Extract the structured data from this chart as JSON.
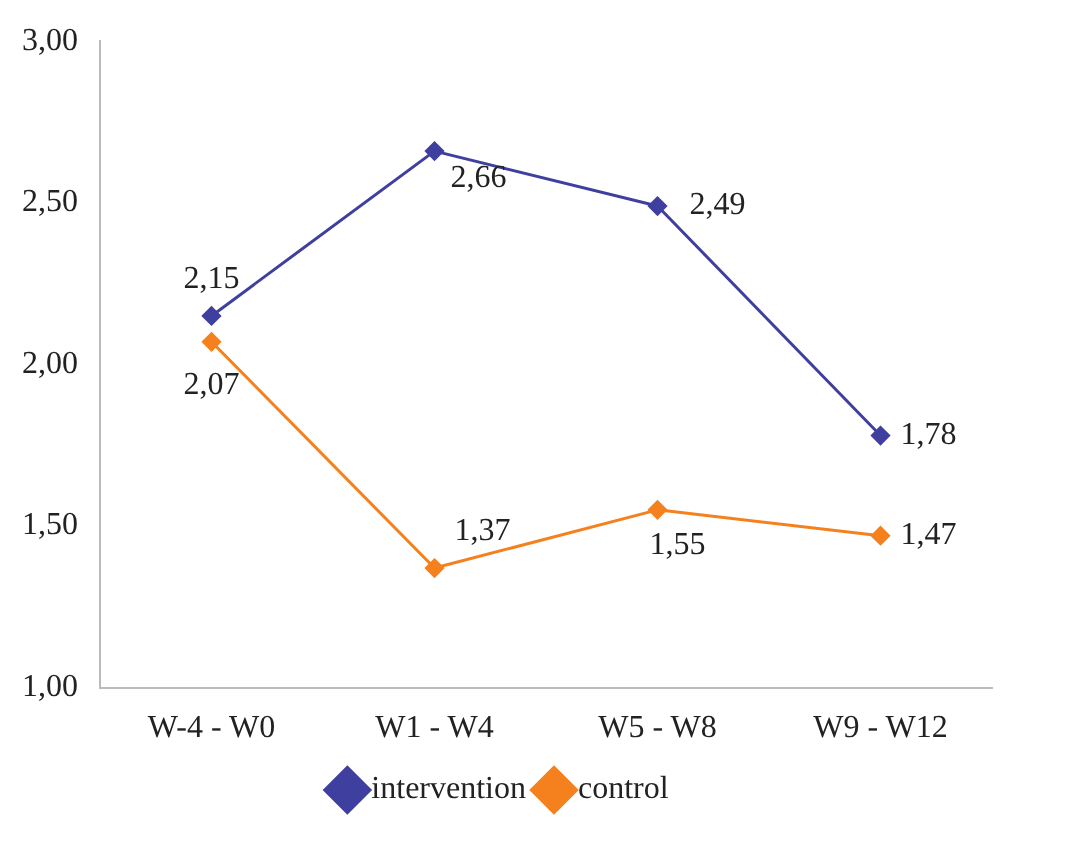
{
  "chart_data": {
    "type": "line",
    "categories": [
      "W-4 - W0",
      "W1 - W4",
      "W5 - W8",
      "W9 - W12"
    ],
    "series": [
      {
        "name": "intervention",
        "color": "#3f3f9f",
        "values": [
          2.15,
          2.66,
          2.49,
          1.78
        ],
        "value_labels": [
          "2,15",
          "2,66",
          "2,49",
          "1,78"
        ]
      },
      {
        "name": "control",
        "color": "#f5801e",
        "values": [
          2.07,
          1.37,
          1.55,
          1.47
        ],
        "value_labels": [
          "2,07",
          "1,37",
          "1,55",
          "1,47"
        ]
      }
    ],
    "ylim": [
      1,
      3
    ],
    "yticks": [
      {
        "value": 1,
        "label": "1,00"
      },
      {
        "value": 1.5,
        "label": "1,50"
      },
      {
        "value": 2,
        "label": "2,00"
      },
      {
        "value": 2.5,
        "label": "2,50"
      },
      {
        "value": 3,
        "label": "3,00"
      }
    ],
    "grid": false,
    "legend": "bottom",
    "marker": "diamond",
    "line_style": "solid"
  }
}
